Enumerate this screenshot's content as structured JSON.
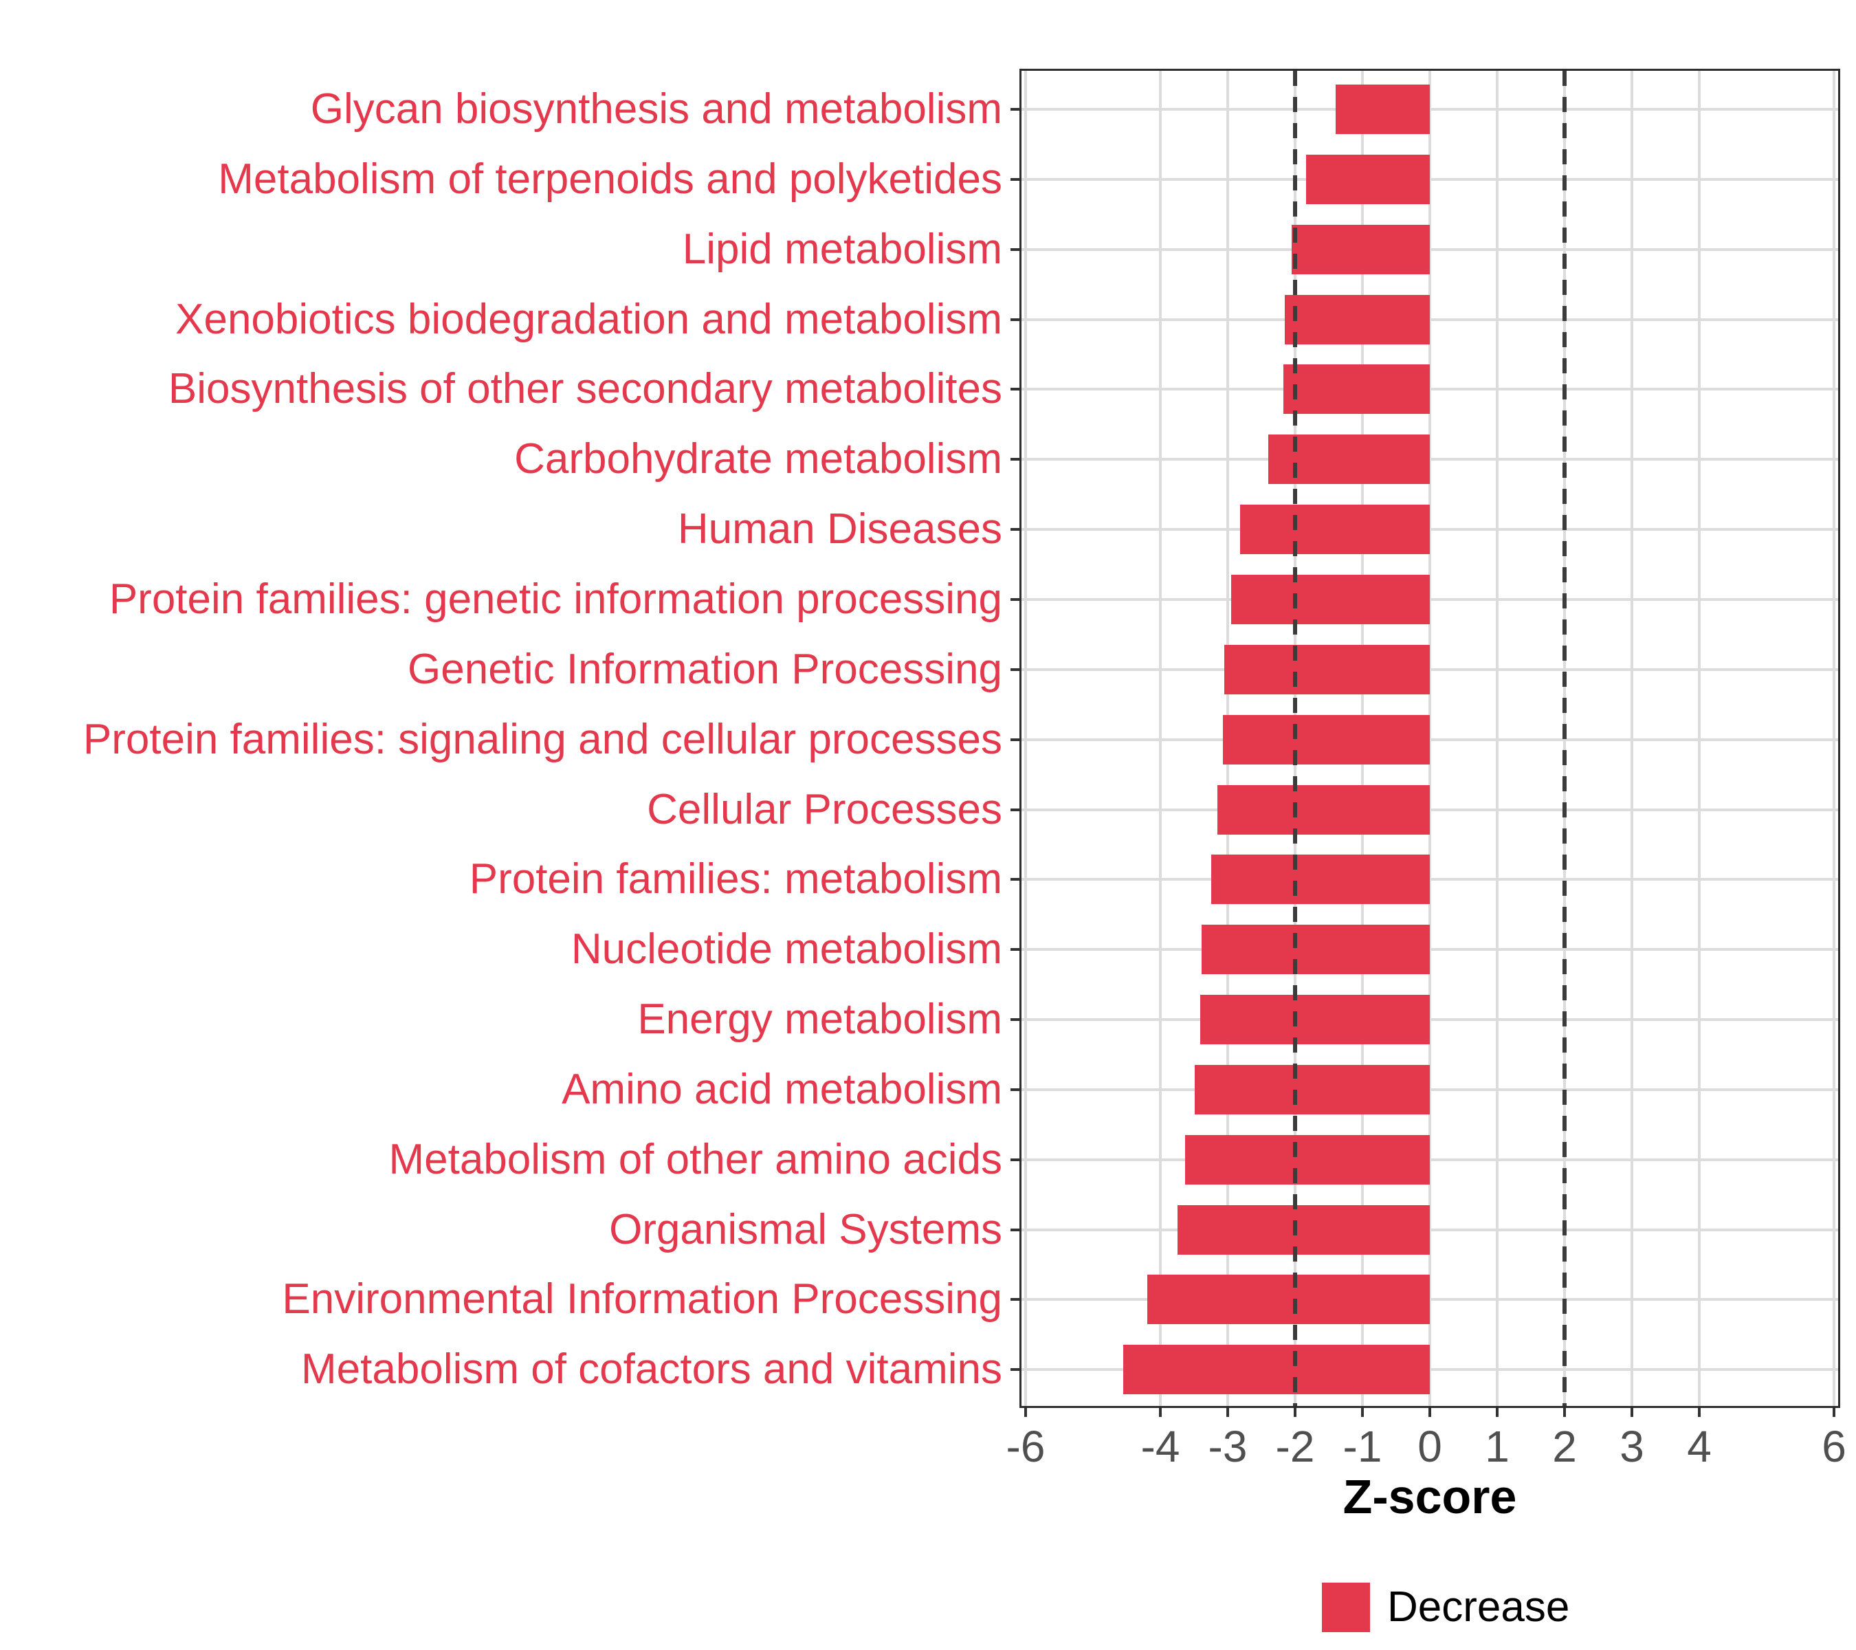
{
  "axis": {
    "x_title": "Z-score",
    "tick_label_color": "#4F4F4F",
    "tick_color": "#333333",
    "panel_border_color": "#2E2E2E",
    "grid_color": "#DCDCDC",
    "reference_line_color": "#3C3C3C"
  },
  "legend": {
    "label": "Decrease",
    "swatch_color": "#E4384D"
  },
  "chart_data": {
    "type": "bar",
    "orientation": "horizontal",
    "title": "",
    "xlabel": "Z-score",
    "ylabel": "",
    "xlim": [
      -6,
      6
    ],
    "x_ticks": [
      -6,
      -4,
      -3,
      -2,
      -1,
      0,
      1,
      2,
      3,
      4,
      6
    ],
    "reference_lines": [
      -2,
      2
    ],
    "grid": true,
    "legend_position": "bottom",
    "bar_color": "#E4384D",
    "category_label_color": "#E4384D",
    "series_name": "Decrease",
    "categories": [
      "Glycan biosynthesis and metabolism",
      "Metabolism of terpenoids and polyketides",
      "Lipid metabolism",
      "Xenobiotics biodegradation and metabolism",
      "Biosynthesis of other secondary metabolites",
      "Carbohydrate metabolism",
      "Human Diseases",
      "Protein families: genetic information processing",
      "Genetic Information Processing",
      "Protein families: signaling and cellular processes",
      "Cellular Processes",
      "Protein families: metabolism",
      "Nucleotide metabolism",
      "Energy metabolism",
      "Amino acid metabolism",
      "Metabolism of other amino acids",
      "Organismal Systems",
      "Environmental Information Processing",
      "Metabolism of cofactors and vitamins"
    ],
    "values": [
      -1.4,
      -1.84,
      -2.05,
      -2.15,
      -2.17,
      -2.4,
      -2.82,
      -2.95,
      -3.05,
      -3.07,
      -3.15,
      -3.25,
      -3.39,
      -3.41,
      -3.49,
      -3.63,
      -3.74,
      -4.19,
      -4.55
    ]
  }
}
